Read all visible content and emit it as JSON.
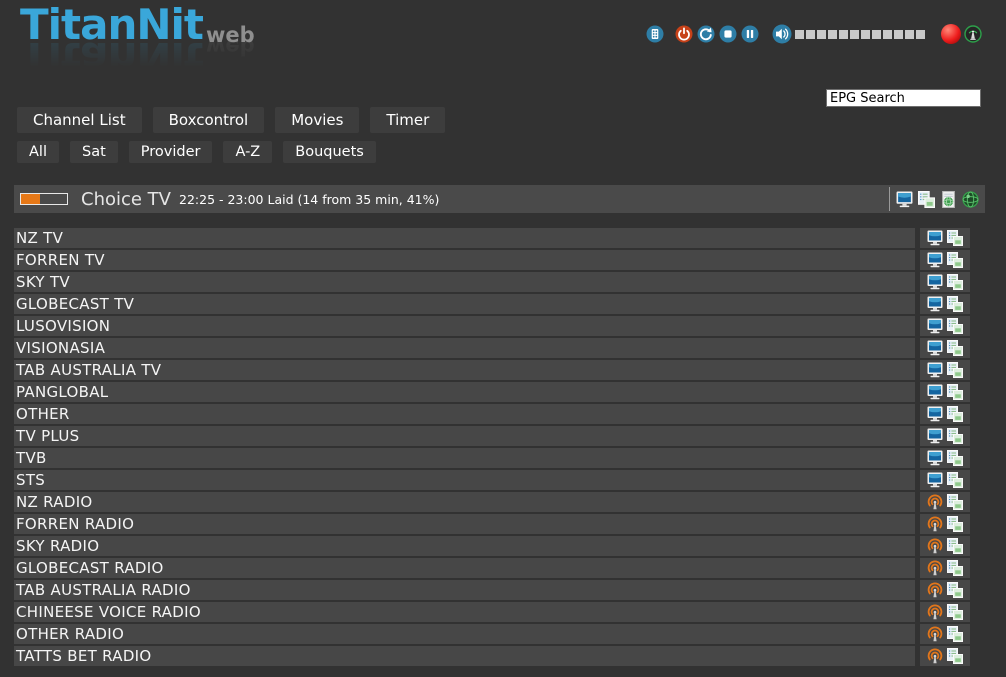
{
  "app": {
    "logo_title": "TitanNit",
    "logo_suffix": "web"
  },
  "topbar": {
    "icons": [
      "remote-keypad",
      "power",
      "restart",
      "stop",
      "pause",
      "speaker",
      "record-indicator",
      "stream-antenna"
    ],
    "volume_segment_count": 12
  },
  "search": {
    "value": "EPG Search"
  },
  "nav": {
    "items": [
      "Channel List",
      "Boxcontrol",
      "Movies",
      "Timer"
    ]
  },
  "filters": {
    "items": [
      "All",
      "Sat",
      "Provider",
      "A-Z",
      "Bouquets"
    ]
  },
  "now_playing": {
    "channel": "Choice TV",
    "epg_info": "22:25 - 23:00 Laid (14 from 35 min, 41%)",
    "progress_percent": 41,
    "icons": [
      "tv-screen",
      "copy-epg",
      "epg-page-globe",
      "web-globe"
    ]
  },
  "channel_list": {
    "row_icons": [
      "tv-screen or radio-broadcast",
      "copy-epg"
    ],
    "channels": [
      {
        "name": "NZ TV",
        "type": "tv"
      },
      {
        "name": "FORREN TV",
        "type": "tv"
      },
      {
        "name": "SKY TV",
        "type": "tv"
      },
      {
        "name": "GLOBECAST TV",
        "type": "tv"
      },
      {
        "name": "LUSOVISION",
        "type": "tv"
      },
      {
        "name": "VISIONASIA",
        "type": "tv"
      },
      {
        "name": "TAB AUSTRALIA TV",
        "type": "tv"
      },
      {
        "name": "PANGLOBAL",
        "type": "tv"
      },
      {
        "name": "OTHER",
        "type": "tv"
      },
      {
        "name": "TV PLUS",
        "type": "tv"
      },
      {
        "name": "TVB",
        "type": "tv"
      },
      {
        "name": "STS",
        "type": "tv"
      },
      {
        "name": "NZ RADIO",
        "type": "radio"
      },
      {
        "name": "FORREN RADIO",
        "type": "radio"
      },
      {
        "name": "SKY RADIO",
        "type": "radio"
      },
      {
        "name": "GLOBECAST RADIO",
        "type": "radio"
      },
      {
        "name": "TAB AUSTRALIA RADIO",
        "type": "radio"
      },
      {
        "name": "CHINEESE VOICE RADIO",
        "type": "radio"
      },
      {
        "name": "OTHER RADIO",
        "type": "radio"
      },
      {
        "name": "TATTS BET RADIO",
        "type": "radio"
      }
    ]
  },
  "colors": {
    "page_bg": "#323232",
    "row_bg": "#474747",
    "button_bg": "#3d3d3d",
    "bar_bg": "#4a4a4a",
    "accent_orange": "#e67817",
    "logo_blue": "#3aa7da",
    "control_blue": "#2e7ea6",
    "power_red": "#c74118",
    "record_red": "#ee1c1c",
    "stream_green": "#2da04a"
  }
}
